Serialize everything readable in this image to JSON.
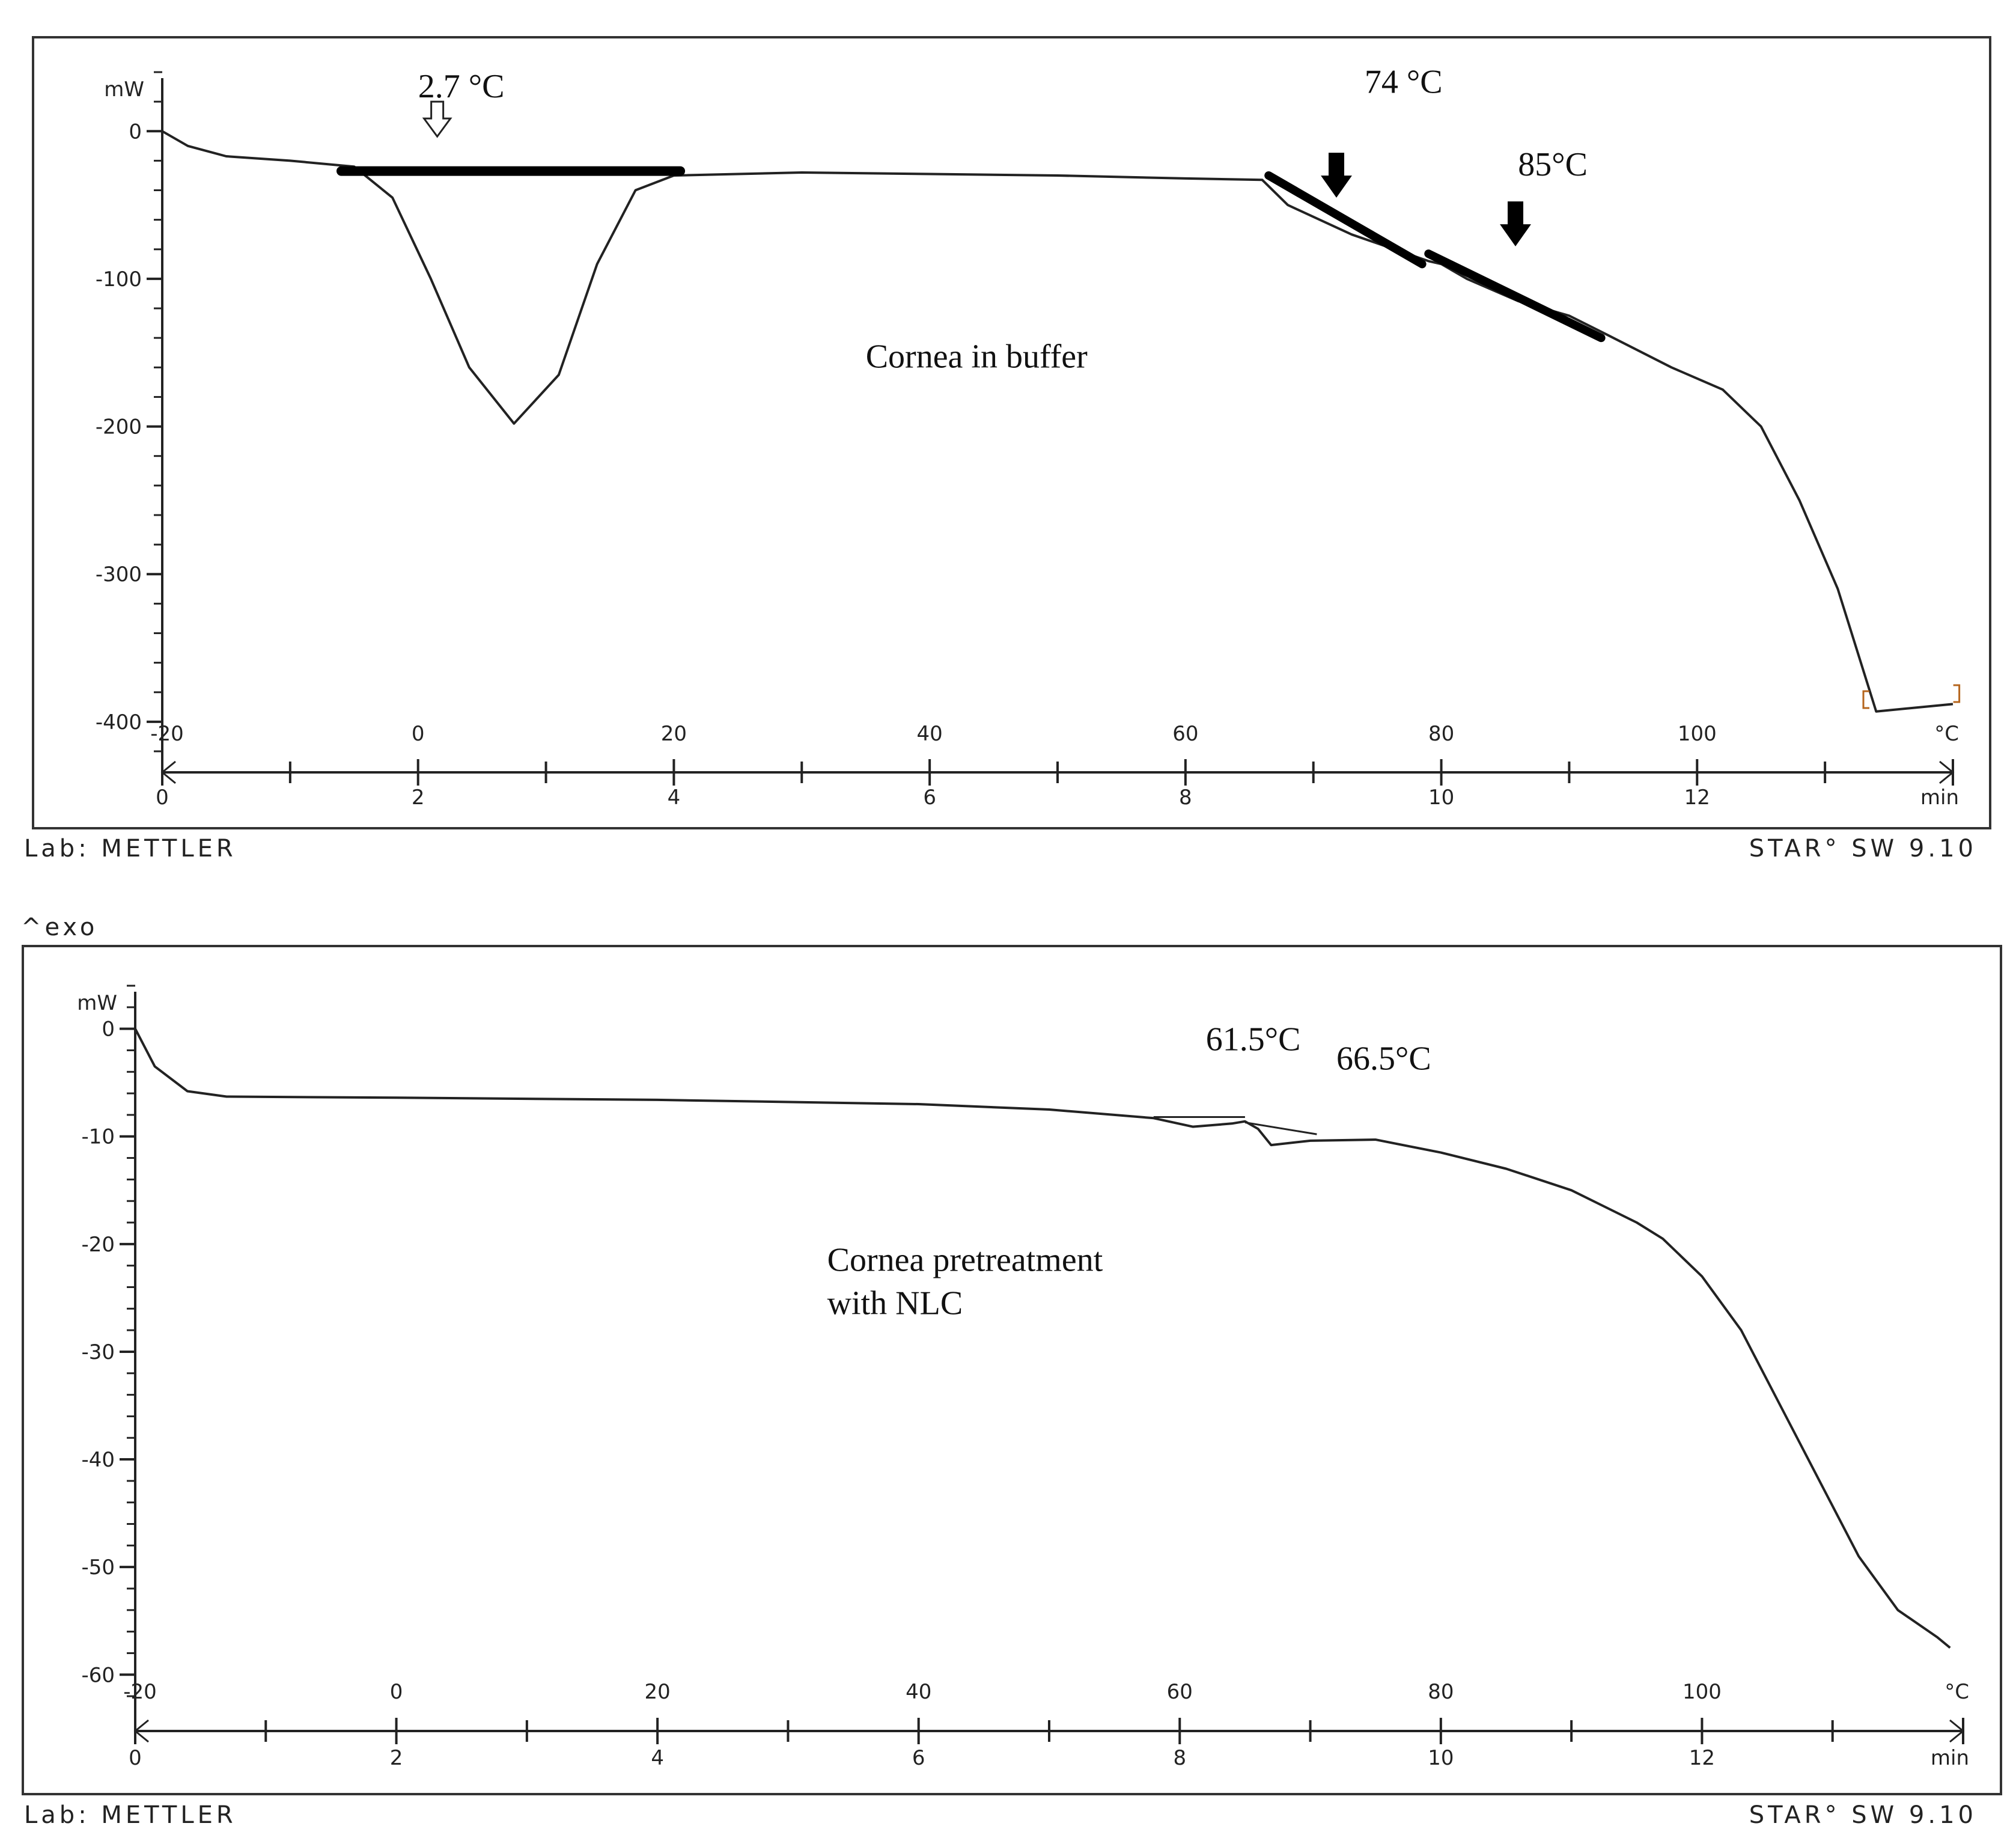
{
  "chart_data": [
    {
      "type": "line",
      "xlabel": "min",
      "secondary_axis_label": "°C",
      "ylabel": "mW",
      "xlim": [
        0,
        14
      ],
      "ylim": [
        -420,
        40
      ],
      "y_ticks": [
        0,
        -100,
        -200,
        -300,
        -400
      ],
      "x_ticks": [
        0,
        2,
        4,
        6,
        8,
        10,
        12
      ],
      "temp_ticks": [
        {
          "min": 0,
          "label": "-20"
        },
        {
          "min": 2,
          "label": "0"
        },
        {
          "min": 4,
          "label": "20"
        },
        {
          "min": 6,
          "label": "40"
        },
        {
          "min": 8,
          "label": "60"
        },
        {
          "min": 10,
          "label": "80"
        },
        {
          "min": 12,
          "label": "100"
        }
      ],
      "series": [
        {
          "points": [
            [
              0,
              0
            ],
            [
              0.2,
              -10
            ],
            [
              0.5,
              -17
            ],
            [
              1,
              -20
            ],
            [
              1.5,
              -24
            ],
            [
              1.8,
              -45
            ],
            [
              2.1,
              -100
            ],
            [
              2.4,
              -160
            ],
            [
              2.75,
              -198
            ],
            [
              3.1,
              -165
            ],
            [
              3.4,
              -90
            ],
            [
              3.7,
              -40
            ],
            [
              4,
              -30
            ],
            [
              5,
              -28
            ],
            [
              6,
              -29
            ],
            [
              7,
              -30
            ],
            [
              8,
              -32
            ],
            [
              8.6,
              -33
            ],
            [
              8.8,
              -50
            ],
            [
              9.3,
              -70
            ],
            [
              9.9,
              -88
            ],
            [
              10,
              -90
            ],
            [
              10.2,
              -100
            ],
            [
              10.6,
              -115
            ],
            [
              11,
              -125
            ],
            [
              11.3,
              -138
            ],
            [
              11.8,
              -160
            ],
            [
              12.2,
              -175
            ],
            [
              12.5,
              -200
            ],
            [
              12.8,
              -250
            ],
            [
              13.1,
              -310
            ],
            [
              13.4,
              -393
            ],
            [
              14,
              -388
            ]
          ]
        }
      ],
      "annotations": [
        {
          "text": "2.7 °C",
          "x": 2.0,
          "y": 23
        },
        {
          "text": "74  °C",
          "x": 9.4,
          "y": 26
        },
        {
          "text": "85°C",
          "x": 10.6,
          "y": -30
        },
        {
          "text": "Cornea in buffer",
          "x": 5.5,
          "y": -160
        }
      ],
      "footer_left": "Lab: METTLER",
      "footer_right": "STAR° SW 9.10"
    },
    {
      "type": "line",
      "xlabel": "min",
      "secondary_axis_label": "°C",
      "ylabel": "mW",
      "corner_label": "^exo",
      "xlim": [
        0,
        14
      ],
      "ylim": [
        -63,
        4
      ],
      "y_ticks": [
        0,
        -10,
        -20,
        -30,
        -40,
        -50,
        -60
      ],
      "x_ticks": [
        0,
        2,
        4,
        6,
        8,
        10,
        12
      ],
      "temp_ticks": [
        {
          "min": 0,
          "label": "-20"
        },
        {
          "min": 2,
          "label": "0"
        },
        {
          "min": 4,
          "label": "20"
        },
        {
          "min": 6,
          "label": "40"
        },
        {
          "min": 8,
          "label": "60"
        },
        {
          "min": 10,
          "label": "80"
        },
        {
          "min": 12,
          "label": "100"
        }
      ],
      "series": [
        {
          "points": [
            [
              0,
              0
            ],
            [
              0.15,
              -3.5
            ],
            [
              0.4,
              -5.8
            ],
            [
              0.7,
              -6.3
            ],
            [
              2,
              -6.4
            ],
            [
              4,
              -6.6
            ],
            [
              6,
              -7.0
            ],
            [
              7,
              -7.5
            ],
            [
              7.8,
              -8.3
            ],
            [
              8.1,
              -9.1
            ],
            [
              8.4,
              -8.8
            ],
            [
              8.5,
              -8.6
            ],
            [
              8.6,
              -9.3
            ],
            [
              8.7,
              -10.8
            ],
            [
              9,
              -10.4
            ],
            [
              9.5,
              -10.3
            ],
            [
              10,
              -11.5
            ],
            [
              10.5,
              -13
            ],
            [
              11,
              -15
            ],
            [
              11.5,
              -18
            ],
            [
              11.7,
              -19.5
            ],
            [
              12,
              -23
            ],
            [
              12.3,
              -28
            ],
            [
              12.6,
              -35
            ],
            [
              12.9,
              -42
            ],
            [
              13.2,
              -49
            ],
            [
              13.5,
              -54
            ],
            [
              13.8,
              -56.5
            ],
            [
              13.9,
              -57.5
            ]
          ]
        }
      ],
      "annotations": [
        {
          "text": "61.5°C",
          "x": 8.2,
          "y": -2.0
        },
        {
          "text": "66.5°C",
          "x": 9.2,
          "y": -3.8
        },
        {
          "text": "Cornea pretreatment",
          "x": 5.3,
          "y": -22.5
        },
        {
          "text": "with NLC",
          "x": 5.3,
          "y": -26.5
        }
      ],
      "footer_left": "Lab: METTLER",
      "footer_right": "STAR° SW 9.10"
    }
  ]
}
